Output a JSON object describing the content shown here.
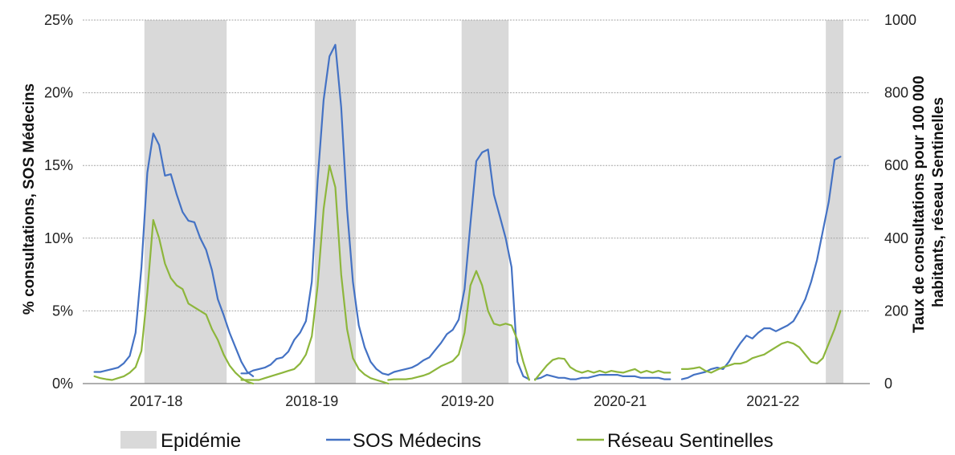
{
  "chart_data": {
    "type": "line",
    "x_unit": "weeks since start of 2017-18 season",
    "season_labels": [
      "2017-18",
      "2018-19",
      "2019-20",
      "2020-21",
      "2021-22"
    ],
    "ylabel_left": "% consultations, SOS Médecins",
    "ylabel_right": [
      "Taux de consultations pour 100 000",
      "habitants,  réseau Sentinelles"
    ],
    "y_left": {
      "range": [
        0,
        25
      ],
      "ticks": [
        "0%",
        "5%",
        "10%",
        "15%",
        "20%",
        "25%"
      ]
    },
    "y_right": {
      "range": [
        0,
        1000
      ],
      "ticks": [
        "0",
        "200",
        "400",
        "600",
        "800",
        "1000"
      ]
    },
    "grid": true,
    "legend": {
      "placement": "bottom",
      "items": [
        {
          "key": "epidemic",
          "label": "Epidémie",
          "color": "#d9d9d9"
        },
        {
          "key": "sos",
          "label": "SOS Médecins",
          "color": "#4472c4"
        },
        {
          "key": "sentinelles",
          "label": "Réseau Sentinelles",
          "color": "#8db63c"
        }
      ]
    },
    "epidemic_periods": [
      [
        9,
        22
      ],
      [
        38,
        44
      ],
      [
        63,
        70
      ],
      [
        125,
        127
      ]
    ],
    "series": [
      {
        "name": "SOS Médecins",
        "axis": "left",
        "color": "#4472c4",
        "segments": [
          {
            "x": [
              0,
              1,
              2,
              3,
              4,
              5,
              6,
              7,
              8,
              9,
              10,
              11,
              12,
              13,
              14,
              15,
              16,
              17,
              18,
              19,
              20,
              21,
              22,
              23,
              24,
              25,
              26,
              27
            ],
            "y": [
              0.8,
              0.8,
              0.9,
              1.0,
              1.1,
              1.4,
              1.9,
              3.5,
              8.0,
              14.5,
              17.2,
              16.4,
              14.3,
              14.4,
              13.0,
              11.8,
              11.2,
              11.1,
              10.0,
              9.2,
              7.8,
              5.8,
              4.7,
              3.5,
              2.5,
              1.5,
              0.8,
              0.5
            ]
          },
          {
            "x": [
              25,
              26,
              27,
              28,
              29,
              30,
              31,
              32,
              33,
              34,
              35,
              36,
              37,
              38,
              39,
              40,
              41,
              42,
              43,
              44,
              45,
              46,
              47,
              48,
              49,
              50
            ],
            "y": [
              0.7,
              0.7,
              0.9,
              1.0,
              1.1,
              1.3,
              1.7,
              1.8,
              2.2,
              3.0,
              3.5,
              4.3,
              7.0,
              14.0,
              19.5,
              22.5,
              23.3,
              19.0,
              12.0,
              7.0,
              4.0,
              2.5,
              1.5,
              1.0,
              0.7,
              0.6
            ]
          },
          {
            "x": [
              50,
              51,
              52,
              53,
              54,
              55,
              56,
              57,
              58,
              59,
              60,
              61,
              62,
              63,
              64,
              65,
              66,
              67,
              68,
              69,
              70,
              71,
              72,
              73,
              74
            ],
            "y": [
              0.6,
              0.8,
              0.9,
              1.0,
              1.1,
              1.3,
              1.6,
              1.8,
              2.3,
              2.8,
              3.4,
              3.7,
              4.4,
              6.5,
              11.0,
              15.3,
              15.9,
              16.1,
              13.0,
              11.5,
              10.0,
              8.0,
              1.5,
              0.5,
              0.3
            ]
          },
          {
            "x": [
              75,
              76,
              77,
              78,
              79,
              80,
              81,
              82,
              83,
              84,
              85,
              86,
              87,
              88,
              89,
              90,
              91,
              92,
              93,
              94,
              95,
              96,
              97,
              98
            ],
            "y": [
              0.3,
              0.4,
              0.6,
              0.5,
              0.4,
              0.4,
              0.3,
              0.3,
              0.4,
              0.4,
              0.5,
              0.6,
              0.6,
              0.6,
              0.6,
              0.5,
              0.5,
              0.5,
              0.4,
              0.4,
              0.4,
              0.4,
              0.3,
              0.3
            ]
          },
          {
            "x": [
              100,
              101,
              102,
              103,
              104,
              105,
              106,
              107,
              108,
              109,
              110,
              111,
              112,
              113,
              114,
              115,
              116,
              117,
              118,
              119,
              120,
              121,
              122,
              123,
              124,
              125,
              126,
              127
            ],
            "y": [
              0.3,
              0.4,
              0.6,
              0.7,
              0.8,
              1.0,
              1.1,
              1.0,
              1.5,
              2.2,
              2.8,
              3.3,
              3.1,
              3.5,
              3.8,
              3.8,
              3.6,
              3.8,
              4.0,
              4.3,
              5.0,
              5.8,
              7.0,
              8.5,
              10.5,
              12.5,
              15.4,
              15.6
            ]
          }
        ]
      },
      {
        "name": "Réseau Sentinelles",
        "axis": "right",
        "color": "#8db63c",
        "segments": [
          {
            "x": [
              0,
              1,
              2,
              3,
              4,
              5,
              6,
              7,
              8,
              9,
              10,
              11,
              12,
              13,
              14,
              15,
              16,
              17,
              18,
              19,
              20,
              21,
              22,
              23,
              24,
              25,
              26,
              27
            ],
            "y": [
              20,
              15,
              12,
              10,
              15,
              20,
              30,
              45,
              90,
              250,
              450,
              400,
              330,
              290,
              270,
              260,
              220,
              210,
              200,
              190,
              150,
              120,
              80,
              50,
              30,
              15,
              5,
              0
            ]
          },
          {
            "x": [
              25,
              26,
              27,
              28,
              29,
              30,
              31,
              32,
              33,
              34,
              35,
              36,
              37,
              38,
              39,
              40,
              41,
              42,
              43,
              44,
              45,
              46,
              47,
              48,
              49,
              50
            ],
            "y": [
              10,
              10,
              10,
              10,
              15,
              20,
              25,
              30,
              35,
              40,
              55,
              80,
              130,
              270,
              480,
              600,
              540,
              300,
              150,
              70,
              40,
              25,
              15,
              10,
              5,
              0
            ]
          },
          {
            "x": [
              50,
              51,
              52,
              53,
              54,
              55,
              56,
              57,
              58,
              59,
              60,
              61,
              62,
              63,
              64,
              65,
              66,
              67,
              68,
              69,
              70,
              71,
              72,
              73,
              74
            ],
            "y": [
              10,
              12,
              12,
              12,
              14,
              18,
              22,
              28,
              38,
              48,
              55,
              62,
              80,
              140,
              270,
              310,
              270,
              200,
              165,
              160,
              165,
              160,
              120,
              60,
              10
            ]
          },
          {
            "x": [
              75,
              76,
              77,
              78,
              79,
              80,
              81,
              82,
              83,
              84,
              85,
              86,
              87,
              88,
              89,
              90,
              91,
              92,
              93,
              94,
              95,
              96,
              97,
              98
            ],
            "y": [
              10,
              30,
              50,
              65,
              70,
              68,
              45,
              35,
              30,
              35,
              30,
              35,
              30,
              35,
              32,
              30,
              35,
              40,
              30,
              35,
              30,
              35,
              30,
              30
            ]
          },
          {
            "x": [
              100,
              101,
              102,
              103,
              104,
              105,
              106,
              107,
              108,
              109,
              110,
              111,
              112,
              113,
              114,
              115,
              116,
              117,
              118,
              119,
              120,
              121,
              122,
              123,
              124,
              125,
              126,
              127
            ],
            "y": [
              40,
              40,
              42,
              45,
              35,
              30,
              38,
              45,
              50,
              55,
              55,
              60,
              70,
              75,
              80,
              90,
              100,
              110,
              115,
              110,
              100,
              80,
              60,
              55,
              70,
              110,
              150,
              200
            ]
          }
        ]
      }
    ]
  }
}
